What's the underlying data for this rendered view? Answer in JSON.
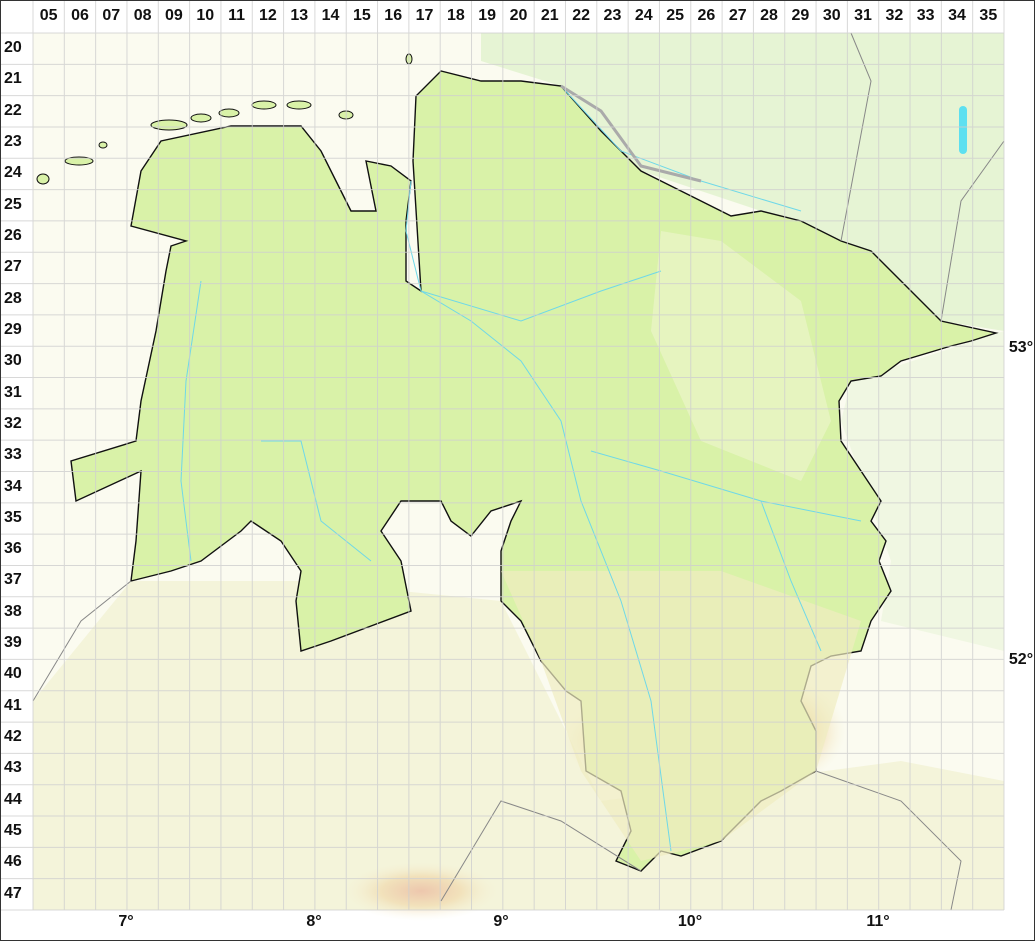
{
  "grid": {
    "columns": [
      "05",
      "06",
      "07",
      "08",
      "09",
      "10",
      "11",
      "12",
      "13",
      "14",
      "15",
      "16",
      "17",
      "18",
      "19",
      "20",
      "21",
      "22",
      "23",
      "24",
      "25",
      "26",
      "27",
      "28",
      "29",
      "30",
      "31",
      "32",
      "33",
      "34",
      "35"
    ],
    "rows": [
      "20",
      "21",
      "22",
      "23",
      "24",
      "25",
      "26",
      "27",
      "28",
      "29",
      "30",
      "31",
      "32",
      "33",
      "34",
      "35",
      "36",
      "37",
      "38",
      "39",
      "40",
      "41",
      "42",
      "43",
      "44",
      "45",
      "46",
      "47"
    ]
  },
  "longitude_labels": [
    "7°",
    "8°",
    "9°",
    "10°",
    "11°"
  ],
  "latitude_labels": [
    "53°",
    "52°"
  ],
  "colors": {
    "region_fill": "#d9f2a8",
    "lowland_outside": "#eaf5d8",
    "upland": "#f6f6dc",
    "highland": "#e8b890",
    "rivers": "#6fd8e8",
    "grid": "#dcdcdc",
    "border": "#111111"
  }
}
